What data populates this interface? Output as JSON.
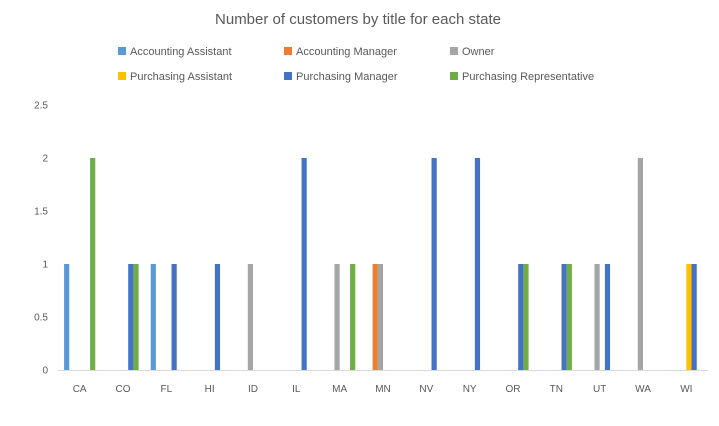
{
  "chart_data": {
    "type": "bar",
    "title": "Number of customers by title for each state",
    "xlabel": "",
    "ylabel": "",
    "categories": [
      "CA",
      "CO",
      "FL",
      "HI",
      "ID",
      "IL",
      "MA",
      "MN",
      "NV",
      "NY",
      "OR",
      "TN",
      "UT",
      "WA",
      "WI"
    ],
    "ylim": [
      0,
      2.5
    ],
    "yticks": [
      "0",
      "0.5",
      "1",
      "1.5",
      "2",
      "2.5"
    ],
    "grid": false,
    "legend_position": "top",
    "series": [
      {
        "name": "Accounting Assistant",
        "color": "#5B9BD5",
        "values": [
          1,
          0,
          1,
          0,
          0,
          0,
          0,
          0,
          0,
          0,
          0,
          0,
          0,
          0,
          0
        ]
      },
      {
        "name": "Accounting Manager",
        "color": "#ED7D31",
        "values": [
          0,
          0,
          0,
          0,
          0,
          0,
          0,
          1,
          0,
          0,
          0,
          0,
          0,
          0,
          0
        ]
      },
      {
        "name": "Owner",
        "color": "#A5A5A5",
        "values": [
          0,
          0,
          0,
          0,
          1,
          0,
          1,
          1,
          0,
          0,
          0,
          0,
          1,
          2,
          0
        ]
      },
      {
        "name": "Purchasing Assistant",
        "color": "#FFC000",
        "values": [
          0,
          0,
          0,
          0,
          0,
          0,
          0,
          0,
          0,
          0,
          0,
          0,
          0,
          0,
          1
        ]
      },
      {
        "name": "Purchasing Manager",
        "color": "#4472C4",
        "values": [
          0,
          1,
          1,
          1,
          0,
          2,
          0,
          0,
          2,
          2,
          1,
          1,
          1,
          0,
          1
        ]
      },
      {
        "name": "Purchasing Representative",
        "color": "#70AD47",
        "values": [
          2,
          1,
          0,
          0,
          0,
          0,
          1,
          0,
          0,
          0,
          1,
          1,
          0,
          0,
          0
        ]
      }
    ]
  }
}
